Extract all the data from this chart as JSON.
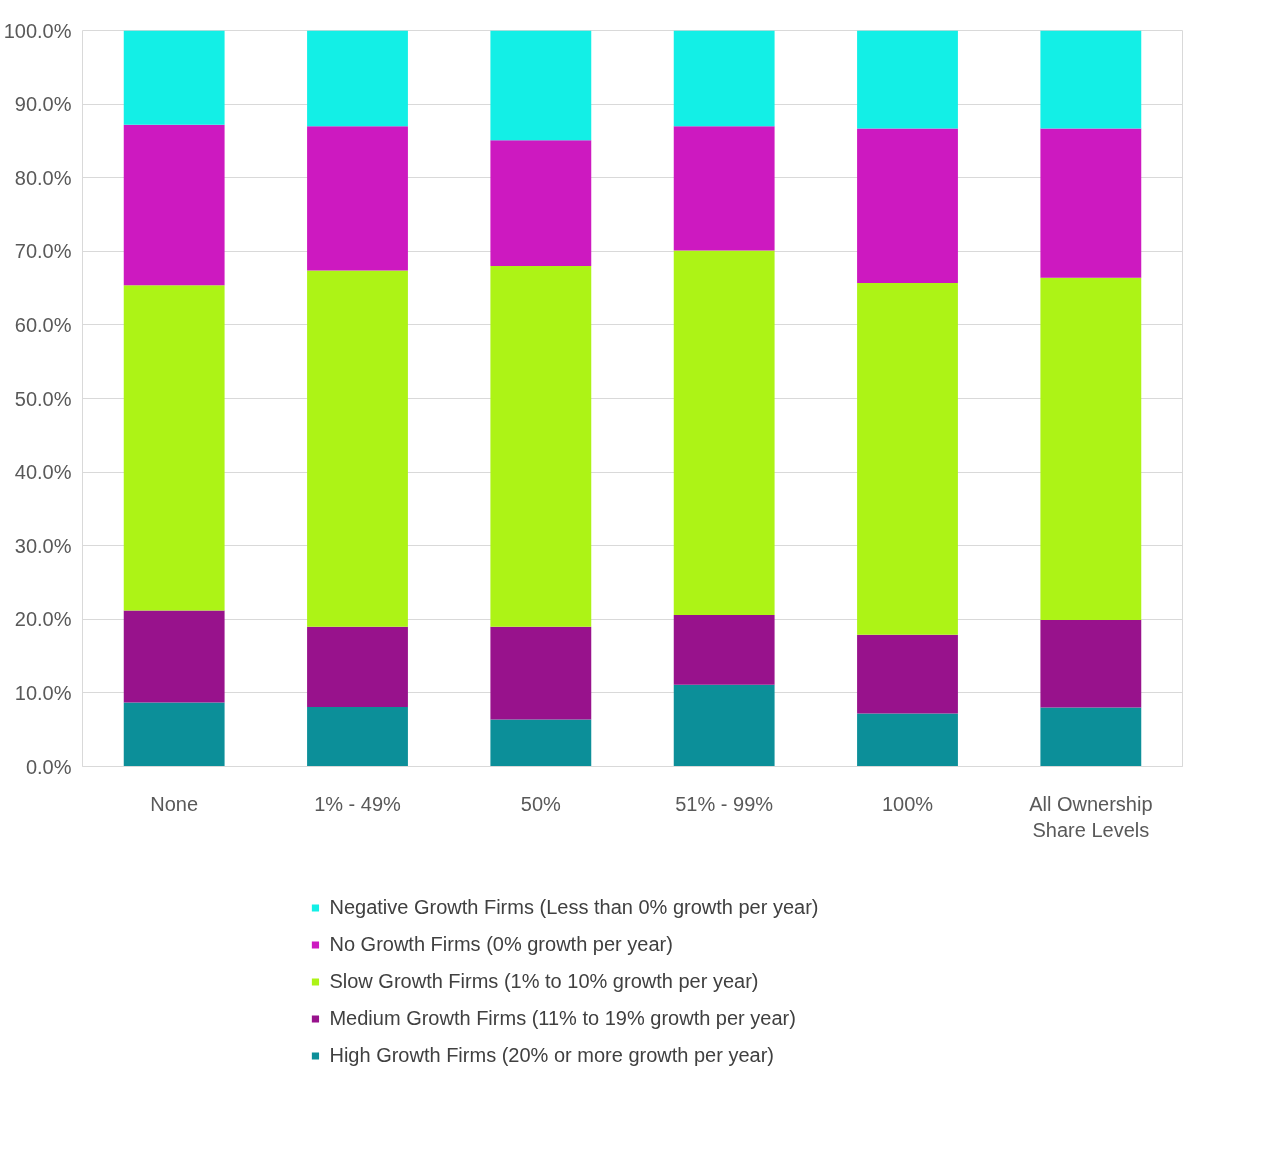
{
  "chart_data": {
    "type": "bar",
    "stacked": true,
    "categories": [
      "None",
      "1% - 49%",
      "50%",
      "51% - 99%",
      "100%",
      "All Ownership Share Levels"
    ],
    "series": [
      {
        "name": "High Growth Firms (20% or more growth per year)",
        "color": "#0c8f99",
        "values": [
          8.7,
          8.1,
          6.4,
          11.1,
          7.2,
          8.0
        ]
      },
      {
        "name": "Medium Growth Firms (11% to 19% growth per year)",
        "color": "#98128c",
        "values": [
          12.5,
          10.9,
          12.6,
          9.5,
          10.7,
          11.9
        ]
      },
      {
        "name": "Slow Growth Firms (1% to 10% growth per year)",
        "color": "#adf316",
        "values": [
          44.2,
          48.4,
          49.0,
          49.5,
          47.8,
          46.5
        ]
      },
      {
        "name": "No Growth Firms (0% growth per year)",
        "color": "#cd19c0",
        "values": [
          21.8,
          19.6,
          17.1,
          16.9,
          21.0,
          20.3
        ]
      },
      {
        "name": "Negative Growth Firms (Less than 0% growth per year)",
        "color": "#13efe6",
        "values": [
          12.8,
          13.0,
          14.9,
          13.0,
          13.3,
          13.3
        ]
      }
    ],
    "ylim": [
      0,
      100
    ],
    "yticks": [
      {
        "value": 0,
        "label": "0.0%"
      },
      {
        "value": 10,
        "label": "10.0%"
      },
      {
        "value": 20,
        "label": "20.0%"
      },
      {
        "value": 30,
        "label": "30.0%"
      },
      {
        "value": 40,
        "label": "40.0%"
      },
      {
        "value": 50,
        "label": "50.0%"
      },
      {
        "value": 60,
        "label": "60.0%"
      },
      {
        "value": 70,
        "label": "70.0%"
      },
      {
        "value": 80,
        "label": "80.0%"
      },
      {
        "value": 90,
        "label": "90.0%"
      },
      {
        "value": 100,
        "label": "100.0%"
      }
    ],
    "grid": "y",
    "legend": "bottom"
  }
}
